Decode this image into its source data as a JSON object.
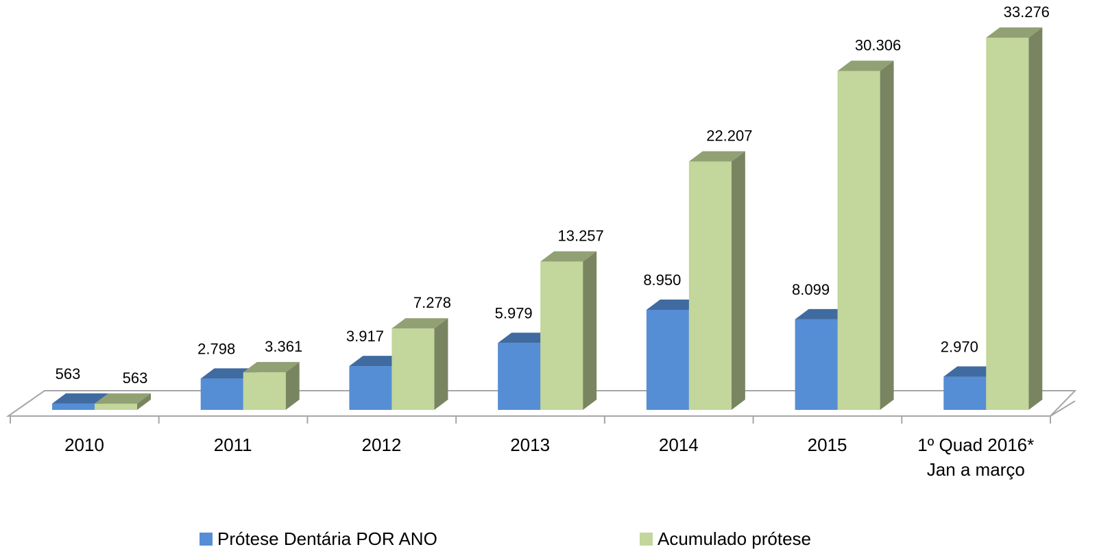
{
  "chart_data": {
    "type": "bar3d",
    "categories": [
      "2010",
      "2011",
      "2012",
      "2013",
      "2014",
      "2015",
      "1º Quad 2016*\nJan a março"
    ],
    "series": [
      {
        "name": "Prótese Dentária POR ANO",
        "color": "#558ed5",
        "values": [
          563,
          2798,
          3917,
          5979,
          8950,
          8099,
          2970
        ],
        "value_labels": [
          "563",
          "2.798",
          "3.917",
          "5.979",
          "8.950",
          "8.099",
          "2.970"
        ]
      },
      {
        "name": "Acumulado prótese",
        "color": "#c3d69b",
        "values": [
          563,
          3361,
          7278,
          13257,
          22207,
          30306,
          33276
        ],
        "value_labels": [
          "563",
          "3.361",
          "7.278",
          "13.257",
          "22.207",
          "30.306",
          "33.276"
        ]
      }
    ],
    "legend": "bottom"
  }
}
